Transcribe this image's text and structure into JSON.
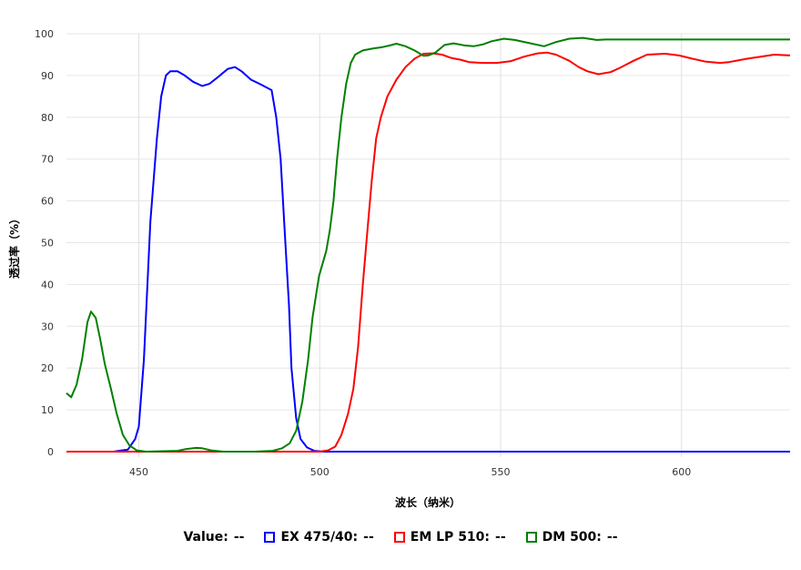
{
  "chart_data": {
    "type": "line",
    "title": "",
    "xlabel": "波长（纳米）",
    "ylabel": "透过率（%）",
    "xlim": [
      430,
      630
    ],
    "ylim": [
      0,
      100
    ],
    "xticks": [
      450,
      500,
      550,
      600
    ],
    "yticks": [
      0,
      10,
      20,
      30,
      40,
      50,
      60,
      70,
      80,
      90,
      100
    ],
    "grid": true,
    "legend_placement": "bottom",
    "legend_value_label": "Value:",
    "legend_placeholder": "--",
    "series": [
      {
        "name": "EX 475/40:",
        "color": "#0000ff",
        "x": [
          430,
          443,
          447,
          449,
          450,
          451.4,
          453.2,
          455,
          456.2,
          457.5,
          458.7,
          460.7,
          462.7,
          465,
          467.5,
          469.5,
          472,
          474.6,
          476.6,
          478.4,
          481,
          483.4,
          486.7,
          488,
          489.2,
          490.5,
          491.5,
          492.2,
          493.5,
          494.7,
          496.5,
          498.5,
          501,
          630
        ],
        "y": [
          0,
          0,
          0.5,
          3,
          6,
          22,
          55,
          75,
          85,
          90,
          91,
          91,
          90,
          88.5,
          87.5,
          88,
          89.7,
          91.6,
          92,
          91,
          89,
          88,
          86.5,
          80,
          70,
          50,
          35,
          20,
          8,
          3,
          1,
          0.2,
          0,
          0
        ]
      },
      {
        "name": "EM LP 510:",
        "color": "#ff0000",
        "x": [
          430,
          500,
          502.3,
          504.3,
          506,
          507.8,
          509.3,
          510.6,
          511.9,
          513.1,
          514.4,
          515.6,
          516.9,
          518.7,
          521.2,
          523.7,
          526.2,
          528.7,
          531.3,
          533.8,
          536.3,
          538.8,
          541.3,
          545.1,
          548.9,
          552.7,
          556.5,
          560.2,
          562.8,
          565.3,
          569,
          571.6,
          574,
          577,
          580.4,
          582.9,
          586.7,
          590.5,
          595.5,
          599.3,
          603,
          606.8,
          610.6,
          613.1,
          618.1,
          621.9,
          625.6,
          630
        ],
        "y": [
          0,
          0,
          0.3,
          1.2,
          4,
          9,
          15,
          25,
          40,
          52,
          65,
          75,
          80,
          85,
          89,
          92,
          94,
          95.2,
          95.3,
          95,
          94.2,
          93.8,
          93.2,
          93,
          93,
          93.4,
          94.5,
          95.3,
          95.5,
          95,
          93.5,
          92,
          91,
          90.3,
          90.8,
          91.8,
          93.5,
          95,
          95.2,
          94.8,
          94,
          93.3,
          93,
          93.2,
          94,
          94.5,
          95,
          94.8
        ]
      },
      {
        "name": "DM 500:",
        "color": "#008000",
        "x": [
          430,
          431.3,
          432.8,
          434.3,
          435.8,
          436.8,
          438.1,
          439.3,
          440.6,
          442.3,
          443.9,
          445.6,
          447.4,
          449.4,
          452,
          460.7,
          463,
          465.8,
          467.5,
          470,
          473.3,
          482,
          487,
          489.6,
          491.7,
          493.5,
          495.2,
          496.8,
          498,
          499.8,
          501.8,
          502.8,
          503.8,
          504.8,
          506,
          507.3,
          508.6,
          509.8,
          511.9,
          514.9,
          517.4,
          519.4,
          521.2,
          523.7,
          526.2,
          528.7,
          530,
          532,
          534.5,
          537,
          540,
          542.5,
          545,
          547.5,
          550.9,
          553.9,
          557.7,
          562,
          565.3,
          569,
          572.8,
          576.6,
          579,
          630
        ],
        "y": [
          14,
          13,
          16,
          22,
          31,
          33.5,
          32,
          27,
          21,
          15,
          9,
          4,
          1.5,
          0.3,
          0,
          0.2,
          0.6,
          0.9,
          0.8,
          0.3,
          0,
          0,
          0.2,
          0.8,
          2,
          5,
          12,
          22,
          32,
          42,
          48,
          53,
          60,
          70,
          80,
          88,
          93,
          95,
          96,
          96.5,
          96.8,
          97.2,
          97.6,
          97,
          96,
          94.7,
          94.8,
          95.5,
          97.3,
          97.7,
          97.2,
          97,
          97.4,
          98.2,
          98.8,
          98.5,
          97.8,
          97,
          98,
          98.8,
          99,
          98.5,
          98.6,
          98.6
        ]
      }
    ]
  }
}
